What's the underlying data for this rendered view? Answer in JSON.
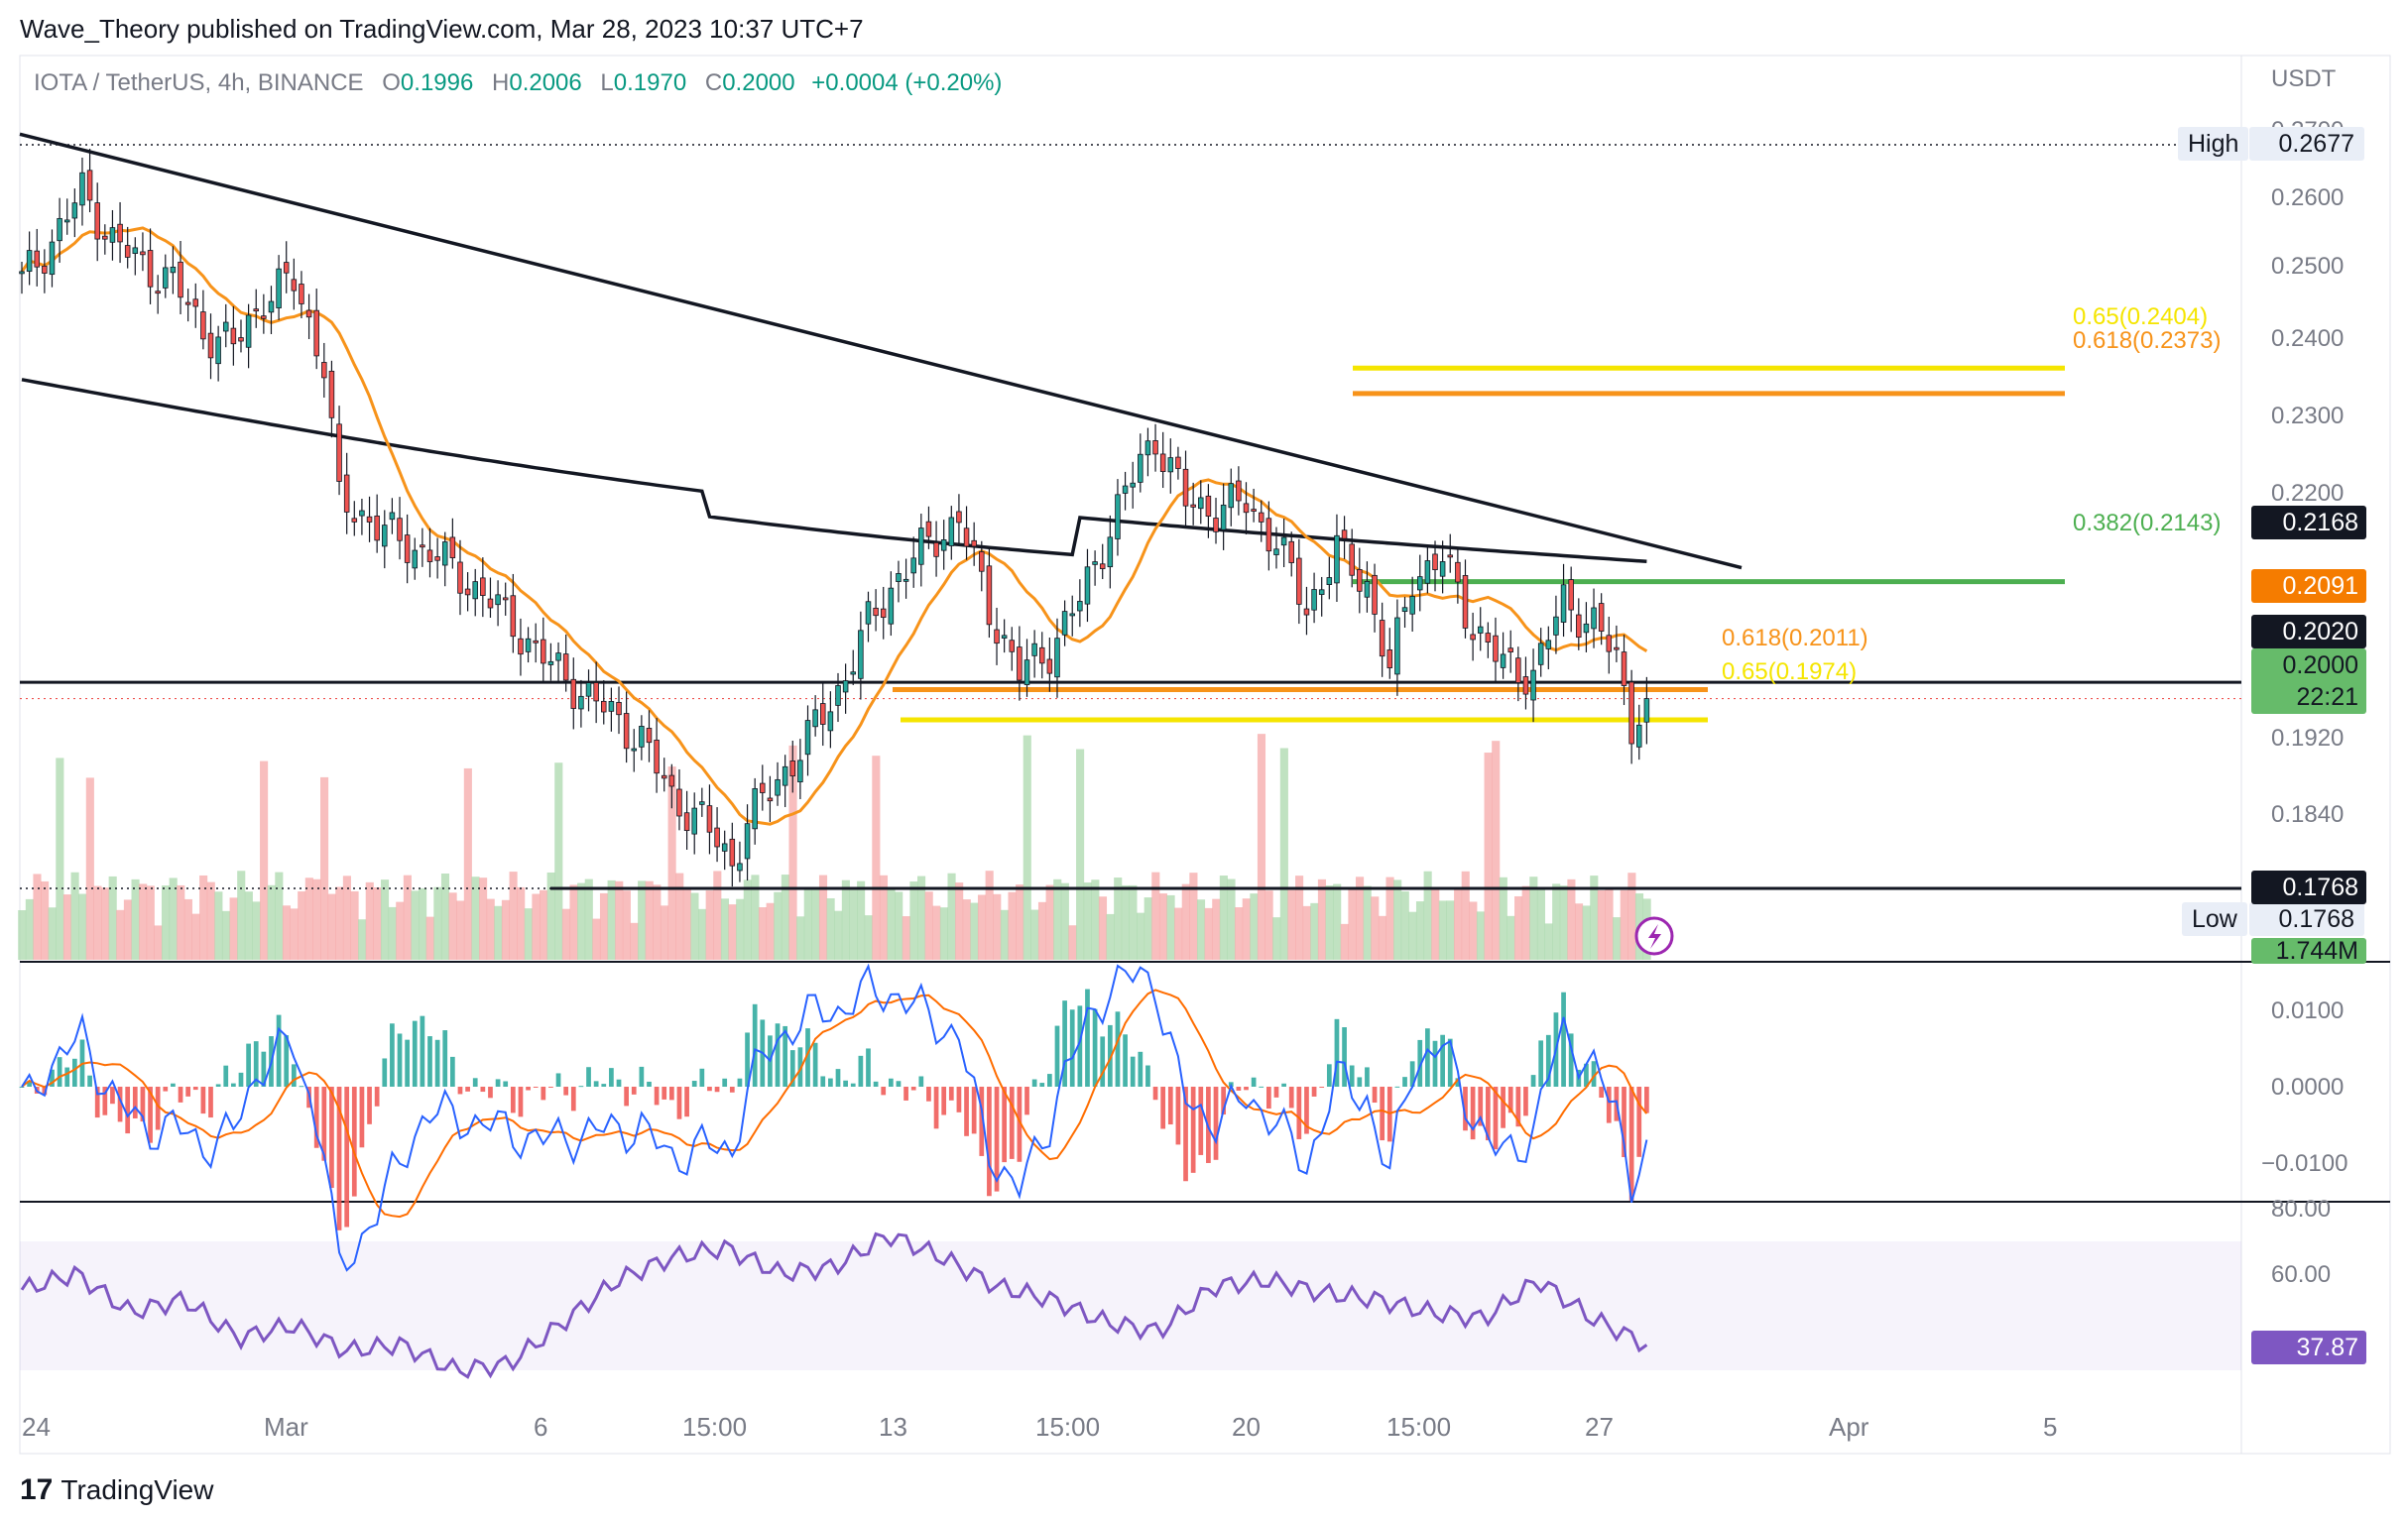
{
  "publisher": "Wave_Theory published on TradingView.com, Mar 28, 2023 10:37 UTC+7",
  "legend": {
    "symbol": "IOTA / TetherUS, 4h, BINANCE",
    "o_label": "O",
    "o": "0.1996",
    "h_label": "H",
    "h": "0.2006",
    "l_label": "L",
    "l": "0.1970",
    "c_label": "C",
    "c": "0.2000",
    "change": "+0.0004 (+0.20%)"
  },
  "currency": "USDT",
  "price_ticks": [
    "0.2700",
    "0.2600",
    "0.2500",
    "0.2400",
    "0.2300",
    "0.2200",
    "0.1920",
    "0.1840"
  ],
  "macd_ticks": [
    "0.0100",
    "0.0000",
    "−0.0100"
  ],
  "rsi_ticks": [
    "80.00",
    "60.00"
  ],
  "labels": {
    "high_tag": "High",
    "high_value": "0.2677",
    "low_tag": "Low",
    "low_value": "0.1768",
    "level_2168": "0.2168",
    "ema_value": "0.2091",
    "level_2020": "0.2020",
    "last_price": "0.2000",
    "countdown": "22:21",
    "level_1768": "0.1768",
    "volume": "1.744M",
    "rsi_value": "37.87"
  },
  "fib": {
    "f065_top": "0.65(0.2404)",
    "f0618_top": "0.618(0.2373)",
    "f0382": "0.382(0.2143)",
    "f0618_low": "0.618(0.2011)",
    "f065_low": "0.65(0.1974)"
  },
  "x_ticks": [
    "24",
    "Mar",
    "6",
    "15:00",
    "13",
    "15:00",
    "20",
    "15:00",
    "27",
    "Apr",
    "5"
  ],
  "footer": {
    "logo": "17",
    "brand": "TradingView"
  },
  "colors": {
    "up": "#26a69a",
    "down": "#ef5350",
    "ema_orange": "#f7931a",
    "ma_black": "#131722",
    "fib_yellow": "#f5e500",
    "fib_orange": "#f7931a",
    "fib_green": "#4caf50",
    "macd_line": "#2962ff",
    "signal_line": "#ff6d00",
    "rsi_line": "#7e57c2"
  },
  "chart_data": [
    {
      "type": "candlestick",
      "title": "IOTA / TetherUS, 4h, BINANCE",
      "ylabel": "USDT",
      "ylim": [
        0.1768,
        0.27
      ],
      "x_range": [
        "Feb 24",
        "Apr 5"
      ],
      "trendline": {
        "from": 0.269,
        "to": 0.216
      },
      "horizontal_levels": [
        0.2677,
        0.2168,
        0.202,
        0.2,
        0.1768
      ],
      "fib_levels": [
        {
          "label": "0.65",
          "value": 0.2404,
          "color": "yellow"
        },
        {
          "label": "0.618",
          "value": 0.2373,
          "color": "orange"
        },
        {
          "label": "0.382",
          "value": 0.2143,
          "color": "green"
        },
        {
          "label": "0.618",
          "value": 0.2011,
          "color": "orange"
        },
        {
          "label": "0.65",
          "value": 0.1974,
          "color": "yellow"
        }
      ],
      "close_path": [
        [
          0,
          0.251
        ],
        [
          4,
          0.256
        ],
        [
          8,
          0.262
        ],
        [
          12,
          0.256
        ],
        [
          16,
          0.253
        ],
        [
          20,
          0.251
        ],
        [
          24,
          0.245
        ],
        [
          28,
          0.243
        ],
        [
          32,
          0.249
        ],
        [
          36,
          0.251
        ],
        [
          40,
          0.241
        ],
        [
          42,
          0.224
        ],
        [
          46,
          0.222
        ],
        [
          50,
          0.219
        ],
        [
          54,
          0.218
        ],
        [
          58,
          0.215
        ],
        [
          62,
          0.212
        ],
        [
          66,
          0.208
        ],
        [
          70,
          0.204
        ],
        [
          74,
          0.201
        ],
        [
          78,
          0.198
        ],
        [
          82,
          0.195
        ],
        [
          86,
          0.188
        ],
        [
          90,
          0.185
        ],
        [
          94,
          0.18
        ],
        [
          96,
          0.185
        ],
        [
          100,
          0.19
        ],
        [
          104,
          0.195
        ],
        [
          108,
          0.201
        ],
        [
          112,
          0.209
        ],
        [
          116,
          0.215
        ],
        [
          120,
          0.219
        ],
        [
          124,
          0.222
        ],
        [
          128,
          0.211
        ],
        [
          132,
          0.203
        ],
        [
          136,
          0.206
        ],
        [
          140,
          0.212
        ],
        [
          144,
          0.221
        ],
        [
          148,
          0.229
        ],
        [
          150,
          0.232
        ],
        [
          154,
          0.224
        ],
        [
          158,
          0.223
        ],
        [
          162,
          0.224
        ],
        [
          166,
          0.219
        ],
        [
          170,
          0.211
        ],
        [
          174,
          0.218
        ],
        [
          178,
          0.214
        ],
        [
          181,
          0.203
        ],
        [
          184,
          0.215
        ],
        [
          188,
          0.217
        ],
        [
          192,
          0.209
        ],
        [
          196,
          0.204
        ],
        [
          200,
          0.203
        ],
        [
          204,
          0.212
        ],
        [
          208,
          0.209
        ],
        [
          211,
          0.205
        ],
        [
          213,
          0.197
        ],
        [
          215,
          0.2
        ]
      ],
      "ema50": {
        "start": 0.25,
        "min": 0.201,
        "end": 0.2091
      },
      "ma200": {
        "start": 0.239,
        "end": 0.2168
      }
    },
    {
      "type": "bar",
      "title": "Volume",
      "last": "1.744M"
    },
    {
      "type": "line",
      "title": "MACD",
      "ylim": [
        -0.01,
        0.01
      ],
      "series": [
        {
          "values": [
            0.0,
            -0.004,
            -0.002,
            0.006,
            0.005,
            -0.001,
            -0.002
          ]
        },
        {
          "values": [
            0.0,
            -0.003,
            -0.003,
            0.004,
            0.004,
            0.0,
            -0.001
          ]
        }
      ]
    },
    {
      "type": "line",
      "title": "RSI",
      "ylim": [
        30,
        80
      ],
      "band": [
        30,
        70
      ],
      "last": 37.87,
      "values": [
        55,
        60,
        48,
        52,
        40,
        44,
        36,
        38,
        30,
        32,
        45,
        58,
        65,
        68,
        60,
        62,
        72,
        65,
        56,
        52,
        45,
        42,
        56,
        58,
        54,
        52,
        48,
        46,
        58,
        46,
        38
      ]
    }
  ]
}
